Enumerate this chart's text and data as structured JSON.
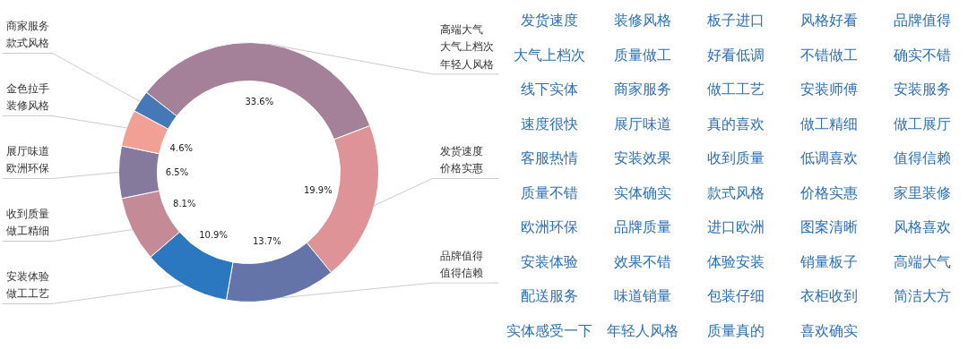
{
  "chart_data": [
    {
      "type": "donut",
      "categories": [
        "高端大气大气上档次年轻人风格",
        "发货速度价格实惠",
        "品牌值得值得信赖",
        "安装体验做工工艺",
        "收到质量做工精细",
        "展厅味道欧洲环保",
        "金色拉手装修风格",
        "商家服务款式风格"
      ],
      "values": [
        33.6,
        19.9,
        13.7,
        10.9,
        8.1,
        6.5,
        4.6,
        2.7
      ],
      "colors": [
        "#a58099",
        "#de9396",
        "#6474a8",
        "#2b77c0",
        "#c48a95",
        "#857a9c",
        "#f2a096",
        "#4678b8"
      ],
      "value_labels": [
        "33.6%",
        "19.9%",
        "13.7%",
        "10.9%",
        "8.1%",
        "6.5%",
        "4.6%",
        null
      ]
    },
    {
      "type": "other",
      "color": "#2e70b5",
      "annotations": [
        "发货速度",
        "装修风格",
        "板子进口",
        "风格好看",
        "品牌值得",
        "大气上档次",
        "质量做工",
        "好看低调",
        "不错做工",
        "确实不错",
        "线下实体",
        "商家服务",
        "做工工艺",
        "安装师傅",
        "安装服务",
        "速度很快",
        "展厅味道",
        "真的喜欢",
        "做工精细",
        "做工展厅",
        "客服热情",
        "安装效果",
        "收到质量",
        "低调喜欢",
        "值得信赖",
        "质量不错",
        "实体确实",
        "款式风格",
        "价格实惠",
        "家里装修",
        "欧洲环保",
        "品牌质量",
        "进口欧洲",
        "图案清晰",
        "风格喜欢",
        "安装体验",
        "效果不错",
        "体验安装",
        "销量板子",
        "高端大气",
        "配送服务",
        "味道销量",
        "包装仔细",
        "衣柜收到",
        "简洁大方",
        "实体感受一下",
        "年轻人风格",
        "质量真的",
        "喜欢确实"
      ]
    }
  ]
}
